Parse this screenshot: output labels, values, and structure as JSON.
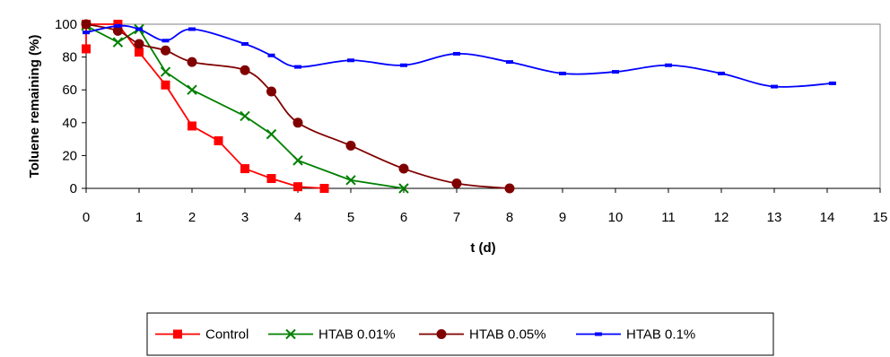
{
  "chart_data": {
    "type": "line",
    "xlabel": "t (d)",
    "ylabel": "Toluene remaining (%)",
    "xlim": [
      0,
      15
    ],
    "ylim": [
      0,
      100
    ],
    "x_ticks": [
      "0",
      "1",
      "2",
      "3",
      "4",
      "5",
      "6",
      "7",
      "8",
      "9",
      "10",
      "11",
      "12",
      "13",
      "14",
      "15"
    ],
    "y_ticks": [
      "0",
      "20",
      "40",
      "60",
      "80",
      "100"
    ],
    "grid": false,
    "legend_position": "bottom",
    "series": [
      {
        "name": "Control",
        "color": "#ff0000",
        "marker": "square",
        "smooth": false,
        "x": [
          0,
          0,
          0.6,
          1,
          1.5,
          2,
          2.5,
          3,
          3.5,
          4,
          4.5
        ],
        "y": [
          85,
          100,
          100,
          83,
          63,
          38,
          29,
          12,
          6,
          1,
          0
        ]
      },
      {
        "name": "HTAB 0.01%",
        "color": "#008000",
        "marker": "x",
        "smooth": false,
        "x": [
          0,
          0.6,
          1,
          1.5,
          2,
          3,
          3.5,
          4,
          5,
          6
        ],
        "y": [
          99,
          89,
          97,
          71,
          60,
          44,
          33,
          17,
          5,
          0
        ]
      },
      {
        "name": "HTAB 0.05%",
        "color": "#800000",
        "marker": "circle",
        "smooth": true,
        "x": [
          0,
          0.6,
          1,
          1.5,
          2,
          3,
          3.5,
          4,
          5,
          6,
          7,
          8
        ],
        "y": [
          100,
          96,
          88,
          84,
          77,
          72,
          59,
          40,
          26,
          12,
          3,
          0
        ]
      },
      {
        "name": "HTAB 0.1%",
        "color": "#0000ff",
        "marker": "dash",
        "smooth": true,
        "x": [
          0,
          0.6,
          1,
          1.5,
          2,
          3,
          3.5,
          4,
          5,
          6,
          7,
          8,
          9,
          10,
          11,
          12,
          13,
          14.1
        ],
        "y": [
          95,
          99,
          97,
          90,
          97,
          88,
          81,
          74,
          78,
          75,
          82,
          77,
          70,
          71,
          75,
          70,
          62,
          64
        ]
      }
    ]
  }
}
